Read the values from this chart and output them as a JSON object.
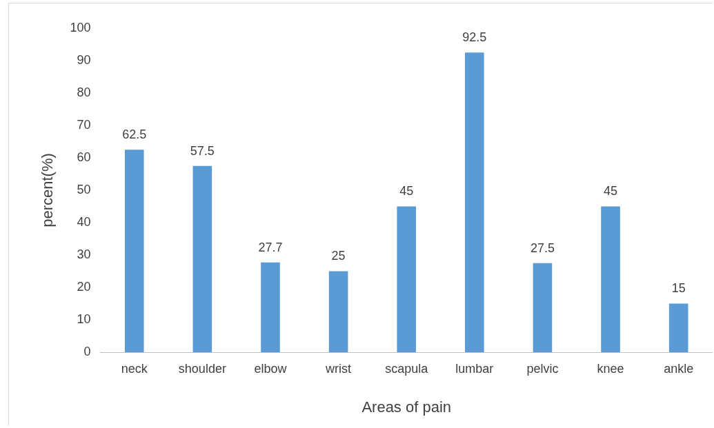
{
  "chart_data": {
    "type": "bar",
    "xlabel": "Areas of pain",
    "ylabel": "percent(%)",
    "categories": [
      "neck",
      "shoulder",
      "elbow",
      "wrist",
      "scapula",
      "lumbar",
      "pelvic",
      "knee",
      "ankle"
    ],
    "values": [
      62.5,
      57.5,
      27.7,
      25,
      45,
      92.5,
      27.5,
      45,
      15
    ],
    "color": "#5b9bd5",
    "ylim": [
      0,
      100
    ],
    "yticks": [
      0,
      10,
      20,
      30,
      40,
      50,
      60,
      70,
      80,
      90,
      100
    ],
    "grid": false,
    "legend": false,
    "data_labels": true
  }
}
